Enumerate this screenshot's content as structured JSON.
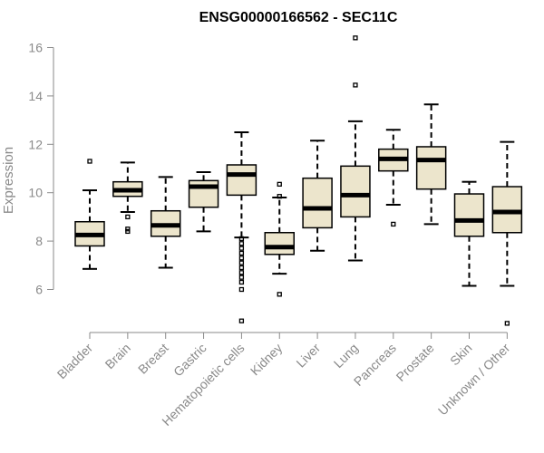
{
  "chart_data": {
    "type": "boxplot",
    "title": "ENSG00000166562 - SEC11C",
    "xlabel": "",
    "ylabel": "Expression",
    "ylim": [
      4.5,
      16.5
    ],
    "yticks": [
      6,
      8,
      10,
      12,
      14,
      16
    ],
    "ytick_labels": [
      "6",
      "8",
      "10",
      "12",
      "14",
      "16"
    ],
    "categories": [
      "Bladder",
      "Brain",
      "Breast",
      "Gastric",
      "Hematopoietic cells",
      "Kidney",
      "Liver",
      "Lung",
      "Pancreas",
      "Prostate",
      "Skin",
      "Unknown / Other"
    ],
    "box_color": "#ece5cc",
    "boxes": [
      {
        "category": "Bladder",
        "whisker_low": 6.85,
        "q1": 7.8,
        "median": 8.25,
        "q3": 8.8,
        "whisker_high": 10.1,
        "outliers": [
          11.3
        ]
      },
      {
        "category": "Brain",
        "whisker_low": 9.2,
        "q1": 9.85,
        "median": 10.1,
        "q3": 10.45,
        "whisker_high": 11.25,
        "outliers": [
          9.0,
          8.5,
          8.4
        ]
      },
      {
        "category": "Breast",
        "whisker_low": 6.9,
        "q1": 8.2,
        "median": 8.65,
        "q3": 9.25,
        "whisker_high": 10.65,
        "outliers": []
      },
      {
        "category": "Gastric",
        "whisker_low": 8.4,
        "q1": 9.4,
        "median": 10.25,
        "q3": 10.5,
        "whisker_high": 10.85,
        "outliers": []
      },
      {
        "category": "Hematopoietic cells",
        "whisker_low": 8.15,
        "q1": 9.9,
        "median": 10.75,
        "q3": 11.15,
        "whisker_high": 12.5,
        "outliers": [
          8.1,
          7.9,
          7.7,
          7.5,
          7.3,
          7.1,
          6.9,
          6.7,
          6.5,
          6.3,
          6.0,
          4.7
        ]
      },
      {
        "category": "Kidney",
        "whisker_low": 6.65,
        "q1": 7.45,
        "median": 7.75,
        "q3": 8.35,
        "whisker_high": 9.8,
        "outliers": [
          10.35,
          9.85,
          5.8
        ]
      },
      {
        "category": "Liver",
        "whisker_low": 7.6,
        "q1": 8.55,
        "median": 9.35,
        "q3": 10.6,
        "whisker_high": 12.15,
        "outliers": []
      },
      {
        "category": "Lung",
        "whisker_low": 7.2,
        "q1": 9.0,
        "median": 9.9,
        "q3": 11.1,
        "whisker_high": 12.95,
        "outliers": [
          16.4,
          14.45
        ]
      },
      {
        "category": "Pancreas",
        "whisker_low": 9.5,
        "q1": 10.9,
        "median": 11.4,
        "q3": 11.8,
        "whisker_high": 12.6,
        "outliers": [
          8.7
        ]
      },
      {
        "category": "Prostate",
        "whisker_low": 8.7,
        "q1": 10.15,
        "median": 11.35,
        "q3": 11.9,
        "whisker_high": 13.65,
        "outliers": []
      },
      {
        "category": "Skin",
        "whisker_low": 6.15,
        "q1": 8.2,
        "median": 8.85,
        "q3": 9.95,
        "whisker_high": 10.45,
        "outliers": []
      },
      {
        "category": "Unknown / Other",
        "whisker_low": 6.15,
        "q1": 8.35,
        "median": 9.2,
        "q3": 10.25,
        "whisker_high": 12.1,
        "outliers": [
          4.6
        ]
      }
    ],
    "grid": false,
    "legend": "none"
  }
}
